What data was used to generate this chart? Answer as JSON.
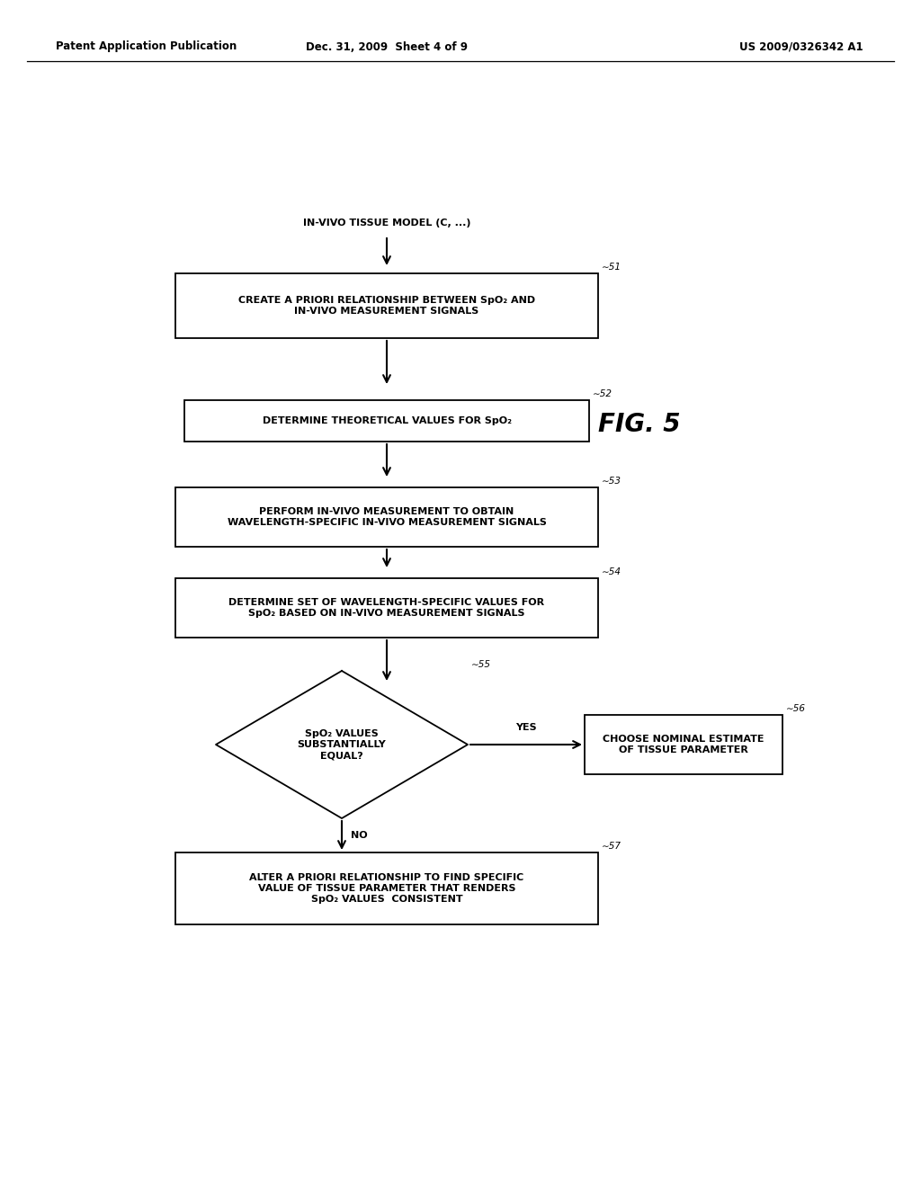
{
  "bg_color": "#ffffff",
  "header_left": "Patent Application Publication",
  "header_mid": "Dec. 31, 2009  Sheet 4 of 9",
  "header_right": "US 2009/0326342 A1",
  "fig_label": "FIG. 5",
  "start_label": "IN-VIVO TISSUE MODEL (C, ...)",
  "box51_text": "CREATE A PRIORI RELATIONSHIP BETWEEN SpO₂ AND\nIN-VIVO MEASUREMENT SIGNALS",
  "box52_text": "DETERMINE THEORETICAL VALUES FOR SpO₂",
  "box53_text": "PERFORM IN-VIVO MEASUREMENT TO OBTAIN\nWAVELENGTH-SPECIFIC IN-VIVO MEASUREMENT SIGNALS",
  "box54_text": "DETERMINE SET OF WAVELENGTH-SPECIFIC VALUES FOR\nSpO₂ BASED ON IN-VIVO MEASUREMENT SIGNALS",
  "diamond55_text": "SpO₂ VALUES\nSUBSTANTIALLY\nEQUAL?",
  "box56_text": "CHOOSE NOMINAL ESTIMATE\nOF TISSUE PARAMETER",
  "box57_text": "ALTER A PRIORI RELATIONSHIP TO FIND SPECIFIC\nVALUE OF TISSUE PARAMETER THAT RENDERS\nSpO₂ VALUES  CONSISTENT",
  "yes_label": "YES",
  "no_label": "NO",
  "font_size": 8.0,
  "font_size_header": 8.5,
  "font_size_fig": 20,
  "font_size_step": 7.5
}
